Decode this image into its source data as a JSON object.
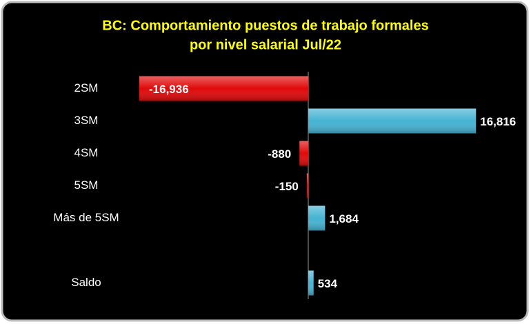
{
  "chart_data": {
    "type": "hbar",
    "title": [
      "BC: Comportamiento puestos de trabajo formales",
      "por nivel salarial Jul/22"
    ],
    "categories": [
      "2SM",
      "3SM",
      "4SM",
      "5SM",
      "Más de 5SM",
      null,
      "Saldo"
    ],
    "values": [
      -16936,
      16816,
      -880,
      -150,
      1684,
      null,
      534
    ],
    "value_labels": [
      "-16,936",
      "16,816",
      "-880",
      "-150",
      "1,684",
      null,
      "534"
    ],
    "negative_color": "#e00a0a",
    "positive_color": "#45b3d3"
  }
}
